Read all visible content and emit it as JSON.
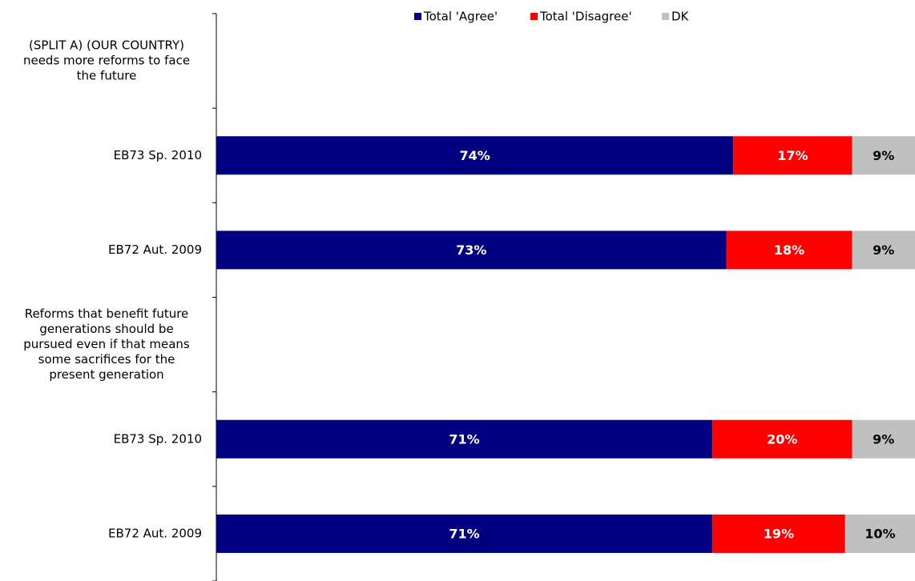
{
  "chart_data": {
    "type": "bar",
    "orientation": "horizontal",
    "stacked": true,
    "xlim": [
      0,
      100
    ],
    "unit": "%",
    "grid": false,
    "legend_position": "top",
    "series": [
      {
        "name": "Total 'Agree'",
        "color": "#000080",
        "label_color": "#ffffff"
      },
      {
        "name": "Total 'Disagree'",
        "color": "#ff0000",
        "label_color": "#ffffff"
      },
      {
        "name": "DK",
        "color": "#c0c0c0",
        "label_color": "#000000"
      }
    ],
    "rows": [
      {
        "label": "(SPLIT A) (OUR COUNTRY) needs more reforms to face the future",
        "lines": [
          "(SPLIT A) (OUR COUNTRY)",
          "needs more reforms to face",
          "the future"
        ],
        "heading": true,
        "values": []
      },
      {
        "label": "EB73 Sp. 2010",
        "lines": [
          "EB73 Sp. 2010"
        ],
        "heading": false,
        "values": [
          74,
          17,
          9
        ]
      },
      {
        "label": "EB72 Aut. 2009",
        "lines": [
          "EB72 Aut. 2009"
        ],
        "heading": false,
        "values": [
          73,
          18,
          9
        ]
      },
      {
        "label": "Reforms that benefit future generations should be pursued even if that means some sacrifices for the present generation",
        "lines": [
          "Reforms that benefit future",
          "generations should be",
          "pursued even if that means",
          "some sacrifices for the",
          "present generation"
        ],
        "heading": true,
        "values": []
      },
      {
        "label": "EB73 Sp. 2010",
        "lines": [
          "EB73 Sp. 2010"
        ],
        "heading": false,
        "values": [
          71,
          20,
          9
        ]
      },
      {
        "label": "EB72 Aut. 2009",
        "lines": [
          "EB72 Aut. 2009"
        ],
        "heading": false,
        "values": [
          71,
          19,
          10
        ]
      }
    ]
  }
}
